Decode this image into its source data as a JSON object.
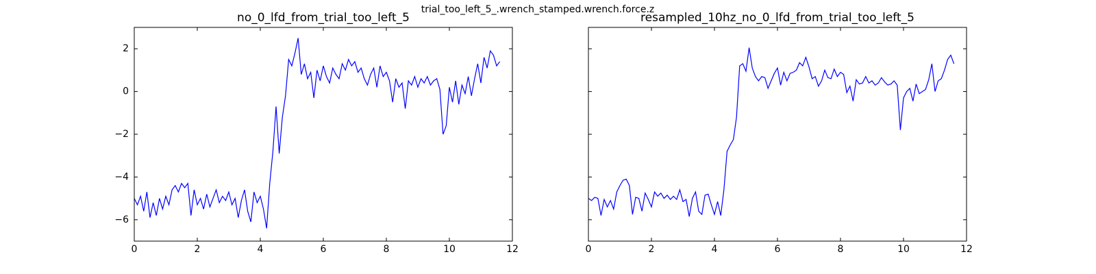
{
  "title": "trial_too_left_5_.wrench_stamped.wrench.force.z",
  "chart_data": [
    {
      "type": "line",
      "title": "no_0_lfd_from_trial_too_left_5",
      "x": [
        0,
        0.1,
        0.2,
        0.3,
        0.4,
        0.5,
        0.6,
        0.7,
        0.8,
        0.9,
        1,
        1.1,
        1.2,
        1.3,
        1.4,
        1.5,
        1.6,
        1.7,
        1.8,
        1.9,
        2,
        2.1,
        2.2,
        2.3,
        2.4,
        2.5,
        2.6,
        2.7,
        2.8,
        2.9,
        3,
        3.1,
        3.2,
        3.3,
        3.4,
        3.5,
        3.6,
        3.7,
        3.8,
        3.9,
        4,
        4.1,
        4.2,
        4.3,
        4.4,
        4.5,
        4.6,
        4.7,
        4.8,
        4.9,
        5,
        5.1,
        5.2,
        5.3,
        5.4,
        5.5,
        5.6,
        5.7,
        5.8,
        5.9,
        6,
        6.1,
        6.2,
        6.3,
        6.4,
        6.5,
        6.6,
        6.7,
        6.8,
        6.9,
        7,
        7.1,
        7.2,
        7.3,
        7.4,
        7.5,
        7.6,
        7.7,
        7.8,
        7.9,
        8,
        8.1,
        8.2,
        8.3,
        8.4,
        8.5,
        8.6,
        8.7,
        8.8,
        8.9,
        9,
        9.1,
        9.2,
        9.3,
        9.4,
        9.5,
        9.6,
        9.7,
        9.8,
        9.9,
        10,
        10.1,
        10.2,
        10.3,
        10.4,
        10.5,
        10.6,
        10.7,
        10.8,
        10.9,
        11,
        11.1,
        11.2,
        11.3,
        11.4,
        11.5,
        11.6
      ],
      "series": [
        {
          "color": "#0000ff",
          "values": [
            -5.0,
            -5.3,
            -4.9,
            -5.6,
            -4.7,
            -5.9,
            -5.2,
            -5.8,
            -5.0,
            -5.5,
            -4.9,
            -5.3,
            -4.6,
            -4.4,
            -4.7,
            -4.3,
            -4.5,
            -4.3,
            -5.8,
            -4.6,
            -5.3,
            -5.0,
            -5.5,
            -4.8,
            -5.4,
            -5.0,
            -4.6,
            -5.2,
            -4.9,
            -5.1,
            -4.7,
            -5.3,
            -5.0,
            -5.9,
            -5.1,
            -4.6,
            -5.6,
            -6.1,
            -4.7,
            -5.2,
            -4.9,
            -5.5,
            -6.4,
            -4.3,
            -2.8,
            -0.7,
            -2.9,
            -1.2,
            -0.2,
            1.5,
            1.2,
            1.8,
            2.5,
            0.8,
            1.3,
            0.6,
            0.9,
            -0.3,
            1.0,
            0.5,
            1.2,
            0.7,
            0.4,
            1.1,
            0.8,
            0.6,
            1.3,
            1.0,
            1.5,
            1.2,
            1.4,
            0.9,
            1.1,
            0.6,
            0.3,
            0.8,
            1.1,
            0.2,
            1.2,
            0.7,
            0.9,
            0.5,
            -0.5,
            0.6,
            0.2,
            0.4,
            -0.8,
            0.5,
            0.3,
            0.7,
            0.2,
            0.6,
            0.4,
            0.7,
            0.3,
            0.5,
            0.6,
            0.1,
            -2.0,
            -1.6,
            0.2,
            -0.5,
            0.5,
            -0.6,
            0.3,
            -0.1,
            0.7,
            -0.2,
            0.6,
            1.3,
            0.4,
            1.6,
            1.1,
            1.9,
            1.7,
            1.2,
            1.4
          ]
        }
      ],
      "xlim": [
        0,
        12
      ],
      "xticks": [
        0,
        2,
        4,
        6,
        8,
        10,
        12
      ],
      "ylim": [
        -7,
        3
      ],
      "yticks": [
        {
          "value": -6,
          "label": "−6"
        },
        {
          "value": -4,
          "label": "−4"
        },
        {
          "value": -2,
          "label": "−2"
        },
        0,
        2
      ]
    },
    {
      "type": "line",
      "title": "resampled_10hz_no_0_lfd_from_trial_too_left_5",
      "x": [
        0,
        0.1,
        0.2,
        0.3,
        0.4,
        0.5,
        0.6,
        0.7,
        0.8,
        0.9,
        1,
        1.1,
        1.2,
        1.3,
        1.4,
        1.5,
        1.6,
        1.7,
        1.8,
        1.9,
        2,
        2.1,
        2.2,
        2.3,
        2.4,
        2.5,
        2.6,
        2.7,
        2.8,
        2.9,
        3,
        3.1,
        3.2,
        3.3,
        3.4,
        3.5,
        3.6,
        3.7,
        3.8,
        3.9,
        4,
        4.1,
        4.2,
        4.3,
        4.4,
        4.5,
        4.6,
        4.7,
        4.8,
        4.9,
        5,
        5.1,
        5.2,
        5.3,
        5.4,
        5.5,
        5.6,
        5.7,
        5.8,
        5.9,
        6,
        6.1,
        6.2,
        6.3,
        6.4,
        6.5,
        6.6,
        6.7,
        6.8,
        6.9,
        7,
        7.1,
        7.2,
        7.3,
        7.4,
        7.5,
        7.6,
        7.7,
        7.8,
        7.9,
        8,
        8.1,
        8.2,
        8.3,
        8.4,
        8.5,
        8.6,
        8.7,
        8.8,
        8.9,
        9,
        9.1,
        9.2,
        9.3,
        9.4,
        9.5,
        9.6,
        9.7,
        9.8,
        9.9,
        10,
        10.1,
        10.2,
        10.3,
        10.4,
        10.5,
        10.6,
        10.7,
        10.8,
        10.9,
        11,
        11.1,
        11.2,
        11.3,
        11.4,
        11.5,
        11.6
      ],
      "series": [
        {
          "color": "#0000ff",
          "values": [
            -5.0,
            -5.1,
            -4.95,
            -5.0,
            -5.8,
            -5.05,
            -5.4,
            -5.1,
            -5.5,
            -4.7,
            -4.4,
            -4.15,
            -4.1,
            -4.4,
            -5.75,
            -4.95,
            -5.0,
            -5.6,
            -4.75,
            -5.05,
            -5.4,
            -4.7,
            -4.9,
            -4.75,
            -5.0,
            -4.85,
            -5.05,
            -4.9,
            -5.05,
            -4.6,
            -5.15,
            -5.05,
            -5.85,
            -5.0,
            -4.7,
            -5.6,
            -5.75,
            -4.85,
            -4.8,
            -5.3,
            -5.75,
            -5.15,
            -5.8,
            -4.6,
            -2.8,
            -2.5,
            -2.25,
            -1.2,
            1.2,
            1.3,
            0.95,
            2.05,
            1.1,
            0.7,
            0.5,
            0.7,
            0.65,
            0.15,
            0.5,
            0.85,
            1.1,
            0.3,
            0.9,
            0.5,
            0.85,
            0.9,
            1.0,
            1.35,
            1.2,
            1.6,
            1.15,
            0.6,
            0.7,
            0.25,
            0.5,
            1.0,
            0.65,
            0.6,
            1.05,
            0.7,
            0.9,
            0.8,
            -0.05,
            0.25,
            -0.45,
            0.55,
            0.35,
            0.4,
            0.7,
            0.4,
            0.5,
            0.3,
            0.4,
            0.65,
            0.45,
            0.3,
            0.35,
            0.5,
            0.3,
            -1.8,
            -0.3,
            0.0,
            0.15,
            -0.45,
            0.35,
            -0.1,
            0.0,
            0.1,
            0.55,
            1.3,
            0.0,
            0.5,
            0.6,
            1.0,
            1.5,
            1.7,
            1.3
          ]
        }
      ],
      "xlim": [
        0,
        12
      ],
      "xticks": [
        0,
        2,
        4,
        6,
        8,
        10,
        12
      ],
      "ylim": [
        -7,
        3
      ],
      "yticks": [
        -6,
        -4,
        -2,
        0,
        2
      ]
    }
  ]
}
